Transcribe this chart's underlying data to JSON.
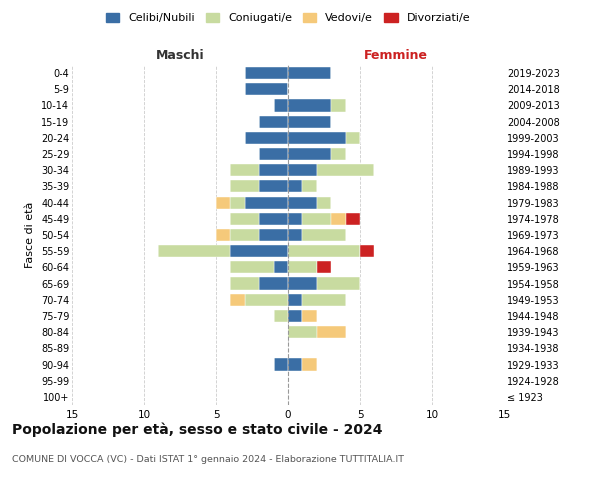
{
  "age_groups": [
    "100+",
    "95-99",
    "90-94",
    "85-89",
    "80-84",
    "75-79",
    "70-74",
    "65-69",
    "60-64",
    "55-59",
    "50-54",
    "45-49",
    "40-44",
    "35-39",
    "30-34",
    "25-29",
    "20-24",
    "15-19",
    "10-14",
    "5-9",
    "0-4"
  ],
  "birth_years": [
    "≤ 1923",
    "1924-1928",
    "1929-1933",
    "1934-1938",
    "1939-1943",
    "1944-1948",
    "1949-1953",
    "1954-1958",
    "1959-1963",
    "1964-1968",
    "1969-1973",
    "1974-1978",
    "1979-1983",
    "1984-1988",
    "1989-1993",
    "1994-1998",
    "1999-2003",
    "2004-2008",
    "2009-2013",
    "2014-2018",
    "2019-2023"
  ],
  "male": {
    "celibi": [
      0,
      0,
      1,
      0,
      0,
      0,
      0,
      2,
      1,
      4,
      2,
      2,
      3,
      2,
      2,
      2,
      3,
      2,
      1,
      3,
      3
    ],
    "coniugati": [
      0,
      0,
      0,
      0,
      0,
      1,
      3,
      2,
      3,
      5,
      2,
      2,
      1,
      2,
      2,
      0,
      0,
      0,
      0,
      0,
      0
    ],
    "vedovi": [
      0,
      0,
      0,
      0,
      0,
      0,
      1,
      0,
      0,
      0,
      1,
      0,
      1,
      0,
      0,
      0,
      0,
      0,
      0,
      0,
      0
    ],
    "divorziati": [
      0,
      0,
      0,
      0,
      0,
      0,
      0,
      0,
      0,
      0,
      0,
      0,
      0,
      0,
      0,
      0,
      0,
      0,
      0,
      0,
      0
    ]
  },
  "female": {
    "nubili": [
      0,
      0,
      1,
      0,
      0,
      1,
      1,
      2,
      0,
      0,
      1,
      1,
      2,
      1,
      2,
      3,
      4,
      3,
      3,
      0,
      3
    ],
    "coniugate": [
      0,
      0,
      0,
      0,
      2,
      0,
      3,
      3,
      2,
      5,
      3,
      2,
      1,
      1,
      4,
      1,
      1,
      0,
      1,
      0,
      0
    ],
    "vedove": [
      0,
      0,
      1,
      0,
      2,
      1,
      0,
      0,
      0,
      0,
      0,
      1,
      0,
      0,
      0,
      0,
      0,
      0,
      0,
      0,
      0
    ],
    "divorziate": [
      0,
      0,
      0,
      0,
      0,
      0,
      0,
      0,
      1,
      1,
      0,
      1,
      0,
      0,
      0,
      0,
      0,
      0,
      0,
      0,
      0
    ]
  },
  "colors": {
    "celibi": "#3a6ea5",
    "coniugati": "#c8dba0",
    "vedovi": "#f5c97a",
    "divorziati": "#cc2222"
  },
  "title": "Popolazione per età, sesso e stato civile - 2024",
  "subtitle": "COMUNE DI VOCCA (VC) - Dati ISTAT 1° gennaio 2024 - Elaborazione TUTTITALIA.IT",
  "xlabel_left": "Maschi",
  "xlabel_right": "Femmine",
  "ylabel_left": "Fasce di età",
  "xlim": 15,
  "legend_labels": [
    "Celibi/Nubili",
    "Coniugati/e",
    "Vedovi/e",
    "Divorziati/e"
  ],
  "bg": "#ffffff"
}
